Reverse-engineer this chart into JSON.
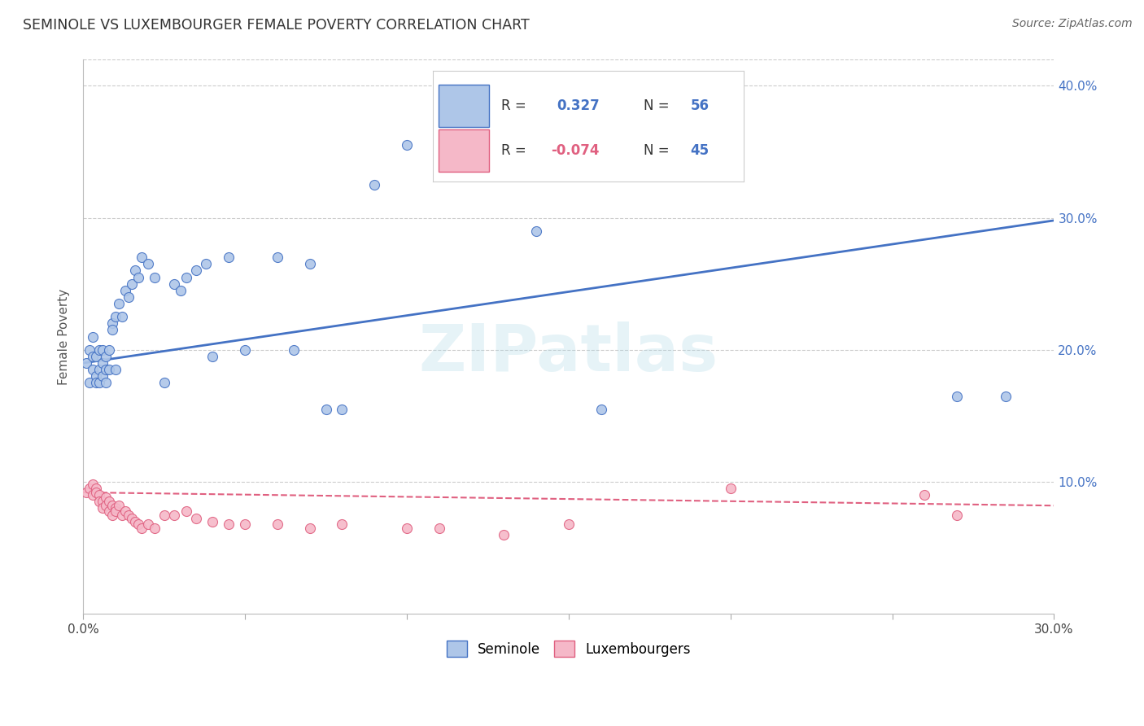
{
  "title": "SEMINOLE VS LUXEMBOURGER FEMALE POVERTY CORRELATION CHART",
  "source": "Source: ZipAtlas.com",
  "ylabel": "Female Poverty",
  "xlim": [
    0.0,
    0.3
  ],
  "ylim": [
    0.0,
    0.42
  ],
  "xticks": [
    0.0,
    0.05,
    0.1,
    0.15,
    0.2,
    0.25,
    0.3
  ],
  "xtick_labels": [
    "0.0%",
    "",
    "",
    "",
    "",
    "",
    "30.0%"
  ],
  "ytick_positions": [
    0.1,
    0.2,
    0.3,
    0.4
  ],
  "ytick_labels": [
    "10.0%",
    "20.0%",
    "30.0%",
    "40.0%"
  ],
  "background_color": "#ffffff",
  "grid_color": "#cccccc",
  "seminole_color": "#aec6e8",
  "luxembourger_color": "#f5b8c8",
  "seminole_line_color": "#4472c4",
  "luxembourger_line_color": "#e06080",
  "legend_r_seminole": "R =  0.327",
  "legend_n_seminole": "N = 56",
  "legend_r_luxembourger": "R = -0.074",
  "legend_n_luxembourger": "N = 45",
  "watermark": "ZIPatlas",
  "seminole_x": [
    0.001,
    0.002,
    0.002,
    0.003,
    0.003,
    0.003,
    0.004,
    0.004,
    0.004,
    0.005,
    0.005,
    0.005,
    0.006,
    0.006,
    0.006,
    0.007,
    0.007,
    0.007,
    0.008,
    0.008,
    0.009,
    0.009,
    0.01,
    0.01,
    0.011,
    0.012,
    0.013,
    0.014,
    0.015,
    0.016,
    0.017,
    0.018,
    0.02,
    0.022,
    0.025,
    0.028,
    0.03,
    0.032,
    0.035,
    0.038,
    0.04,
    0.045,
    0.05,
    0.06,
    0.065,
    0.07,
    0.075,
    0.08,
    0.09,
    0.1,
    0.11,
    0.12,
    0.14,
    0.16,
    0.27,
    0.285
  ],
  "seminole_y": [
    0.19,
    0.2,
    0.175,
    0.195,
    0.185,
    0.21,
    0.18,
    0.195,
    0.175,
    0.2,
    0.185,
    0.175,
    0.2,
    0.19,
    0.18,
    0.195,
    0.185,
    0.175,
    0.2,
    0.185,
    0.22,
    0.215,
    0.225,
    0.185,
    0.235,
    0.225,
    0.245,
    0.24,
    0.25,
    0.26,
    0.255,
    0.27,
    0.265,
    0.255,
    0.175,
    0.25,
    0.245,
    0.255,
    0.26,
    0.265,
    0.195,
    0.27,
    0.2,
    0.27,
    0.2,
    0.265,
    0.155,
    0.155,
    0.325,
    0.355,
    0.36,
    0.355,
    0.29,
    0.155,
    0.165,
    0.165
  ],
  "luxembourger_x": [
    0.001,
    0.002,
    0.003,
    0.003,
    0.004,
    0.004,
    0.005,
    0.005,
    0.006,
    0.006,
    0.007,
    0.007,
    0.008,
    0.008,
    0.009,
    0.009,
    0.01,
    0.01,
    0.011,
    0.012,
    0.013,
    0.014,
    0.015,
    0.016,
    0.017,
    0.018,
    0.02,
    0.022,
    0.025,
    0.028,
    0.032,
    0.035,
    0.04,
    0.045,
    0.05,
    0.06,
    0.07,
    0.08,
    0.1,
    0.11,
    0.13,
    0.15,
    0.2,
    0.26,
    0.27
  ],
  "luxembourger_y": [
    0.092,
    0.095,
    0.098,
    0.09,
    0.095,
    0.092,
    0.09,
    0.085,
    0.085,
    0.08,
    0.088,
    0.082,
    0.085,
    0.078,
    0.082,
    0.075,
    0.08,
    0.078,
    0.082,
    0.075,
    0.078,
    0.075,
    0.072,
    0.07,
    0.068,
    0.065,
    0.068,
    0.065,
    0.075,
    0.075,
    0.078,
    0.072,
    0.07,
    0.068,
    0.068,
    0.068,
    0.065,
    0.068,
    0.065,
    0.065,
    0.06,
    0.068,
    0.095,
    0.09,
    0.075
  ],
  "sem_line_x0": 0.0,
  "sem_line_x1": 0.3,
  "sem_line_y0": 0.19,
  "sem_line_y1": 0.298,
  "lux_line_x0": 0.0,
  "lux_line_x1": 0.3,
  "lux_line_y0": 0.092,
  "lux_line_y1": 0.082
}
